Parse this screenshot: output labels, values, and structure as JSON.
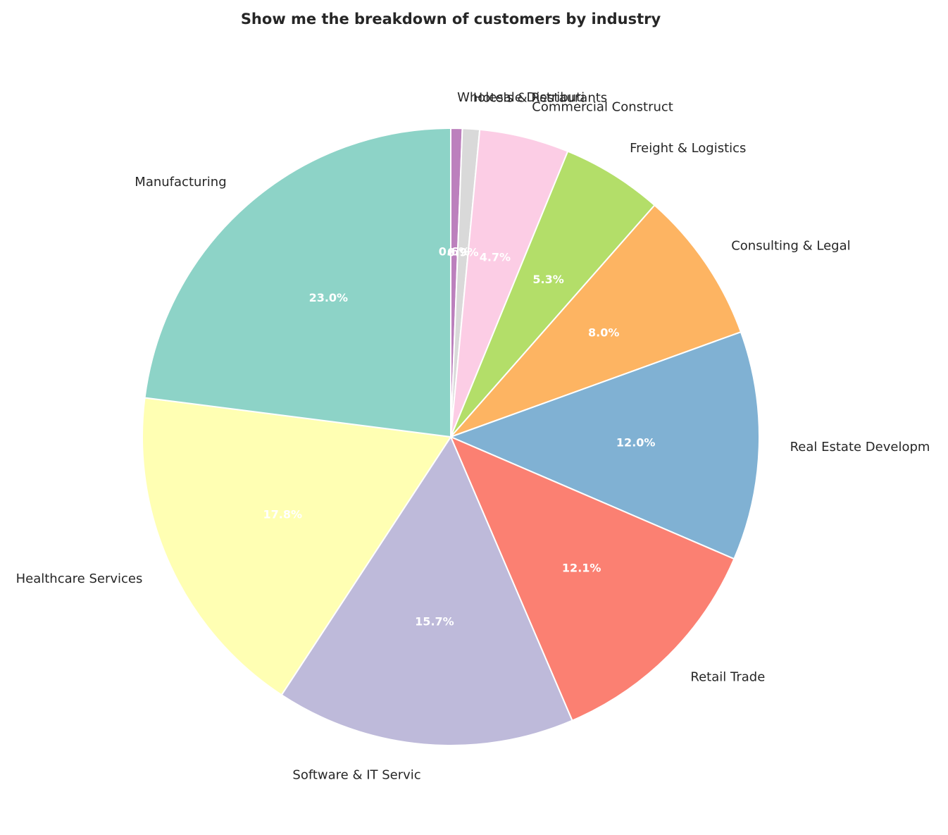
{
  "chart_data": {
    "type": "pie",
    "title": "Show me the breakdown of customers by industry",
    "start_angle_deg": 90,
    "direction": "clockwise",
    "slices": [
      {
        "label": "Wholesale Distributi",
        "value": 0.6,
        "pct_label": "0.6%",
        "color": "#bc80bd"
      },
      {
        "label": "Hotels & Restaurants",
        "value": 0.9,
        "pct_label": "0.9%",
        "color": "#d9d9d9"
      },
      {
        "label": "Commercial Construct",
        "value": 4.7,
        "pct_label": "4.7%",
        "color": "#fccde5"
      },
      {
        "label": "Freight & Logistics",
        "value": 5.3,
        "pct_label": "5.3%",
        "color": "#b3de69"
      },
      {
        "label": "Consulting & Legal",
        "value": 8.0,
        "pct_label": "8.0%",
        "color": "#fdb462"
      },
      {
        "label": "Real Estate Developm",
        "value": 12.0,
        "pct_label": "12.0%",
        "color": "#80b1d3"
      },
      {
        "label": "Retail Trade",
        "value": 12.1,
        "pct_label": "12.1%",
        "color": "#fb8072"
      },
      {
        "label": "Software & IT Servic",
        "value": 15.7,
        "pct_label": "15.7%",
        "color": "#bebada"
      },
      {
        "label": "Healthcare Services",
        "value": 17.8,
        "pct_label": "17.8%",
        "color": "#ffffb3"
      },
      {
        "label": "Manufacturing",
        "value": 23.0,
        "pct_label": "23.0%",
        "color": "#8dd3c7"
      }
    ]
  }
}
